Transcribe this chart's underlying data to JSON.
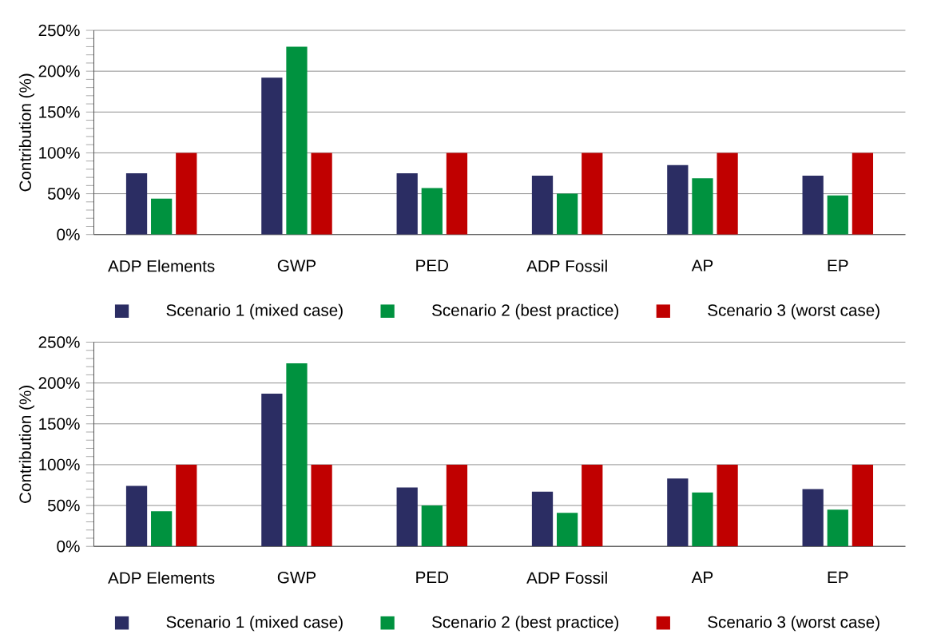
{
  "chart_data": [
    {
      "type": "bar",
      "ylabel": "Contribution (%)",
      "categories": [
        "ADP Elements",
        "GWP",
        "PED",
        "ADP Fossil",
        "AP",
        "EP"
      ],
      "series": [
        {
          "name": "Scenario 1 (mixed case)",
          "color": "#2b2d63",
          "values": [
            75,
            192,
            75,
            72,
            85,
            72
          ]
        },
        {
          "name": "Scenario 2 (best practice)",
          "color": "#00923f",
          "values": [
            44,
            230,
            57,
            50,
            69,
            48
          ]
        },
        {
          "name": "Scenario 3 (worst case)",
          "color": "#c00000",
          "values": [
            100,
            100,
            100,
            100,
            100,
            100
          ]
        }
      ],
      "ylim": [
        0,
        250
      ],
      "yticks": [
        {
          "value": 0,
          "label": "0%"
        },
        {
          "value": 50,
          "label": "50%"
        },
        {
          "value": 100,
          "label": "100%"
        },
        {
          "value": 150,
          "label": "150%"
        },
        {
          "value": 200,
          "label": "200%"
        },
        {
          "value": 250,
          "label": "250%"
        }
      ],
      "grid": "y",
      "legend": "bottom"
    },
    {
      "type": "bar",
      "ylabel": "Contribution (%)",
      "categories": [
        "ADP Elements",
        "GWP",
        "PED",
        "ADP Fossil",
        "AP",
        "EP"
      ],
      "series": [
        {
          "name": "Scenario 1 (mixed case)",
          "color": "#2b2d63",
          "values": [
            74,
            187,
            72,
            67,
            83,
            70
          ]
        },
        {
          "name": "Scenario 2 (best practice)",
          "color": "#00923f",
          "values": [
            43,
            224,
            50,
            41,
            66,
            45
          ]
        },
        {
          "name": "Scenario 3 (worst case)",
          "color": "#c00000",
          "values": [
            100,
            100,
            100,
            100,
            100,
            100
          ]
        }
      ],
      "ylim": [
        0,
        250
      ],
      "yticks": [
        {
          "value": 0,
          "label": "0%"
        },
        {
          "value": 50,
          "label": "50%"
        },
        {
          "value": 100,
          "label": "100%"
        },
        {
          "value": 150,
          "label": "150%"
        },
        {
          "value": 200,
          "label": "200%"
        },
        {
          "value": 250,
          "label": "250%"
        }
      ],
      "grid": "y",
      "legend": "bottom"
    }
  ]
}
